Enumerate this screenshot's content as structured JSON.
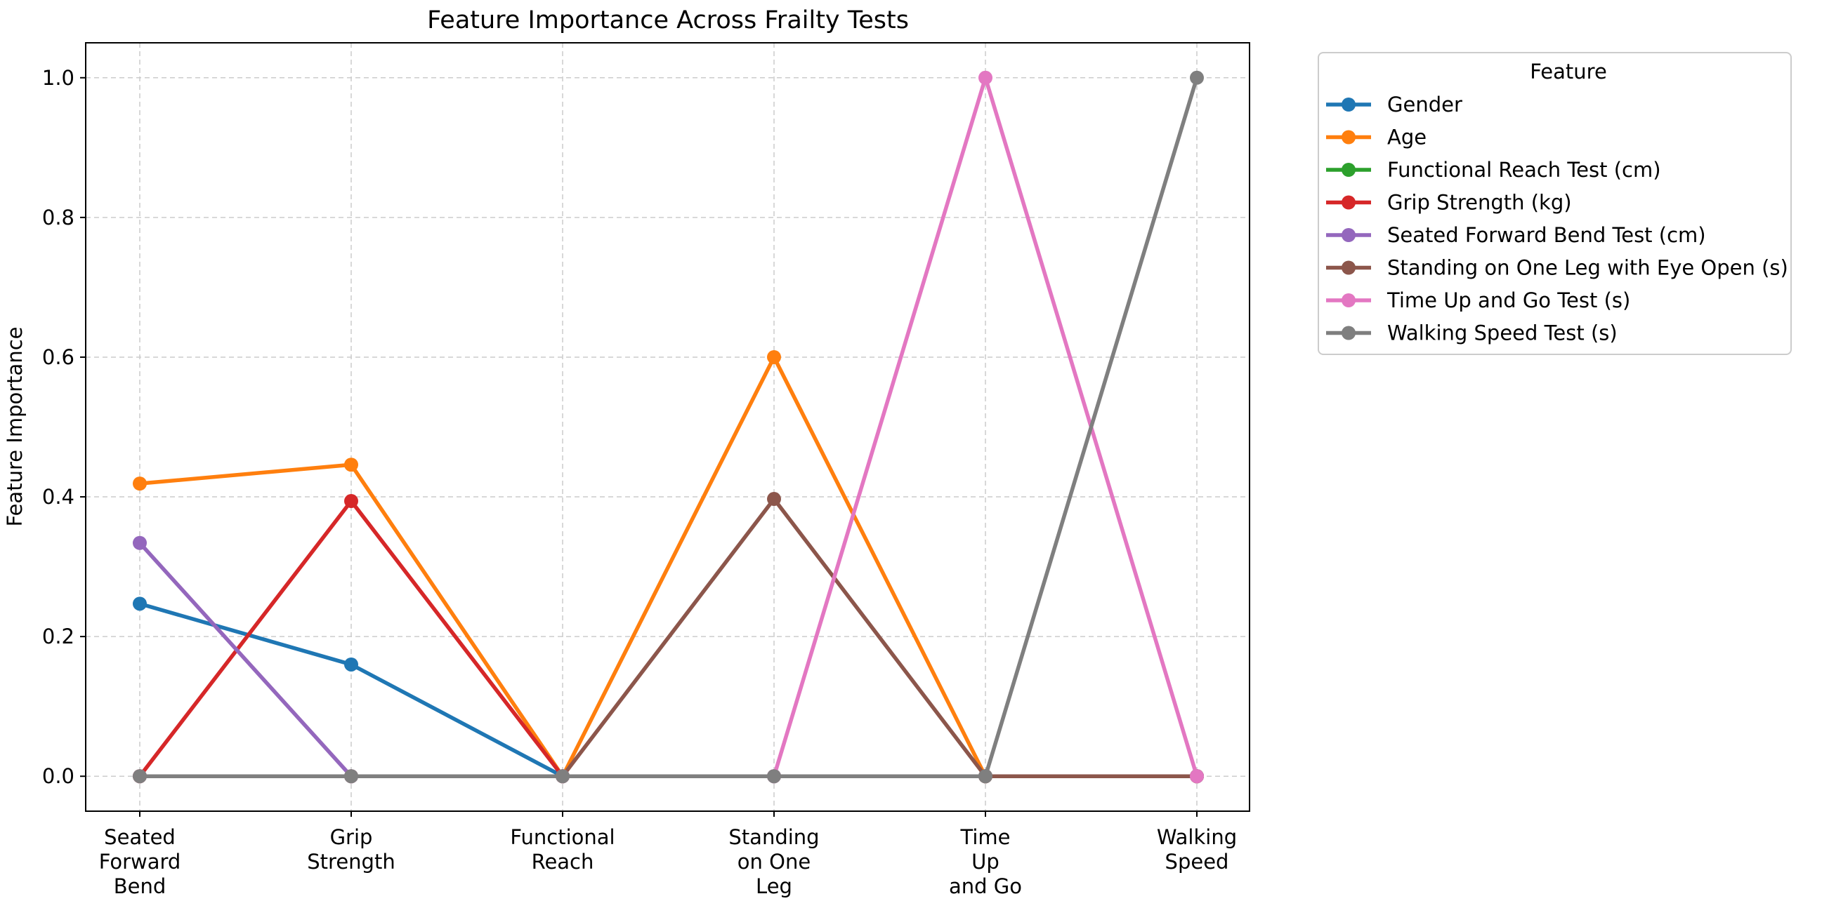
{
  "chart_data": {
    "type": "line",
    "title": "Feature Importance Across Frailty Tests",
    "xlabel": "",
    "ylabel": "Feature Importance",
    "categories": [
      [
        "Seated",
        "Forward",
        "Bend"
      ],
      [
        "Grip",
        "Strength"
      ],
      [
        "Functional",
        "Reach"
      ],
      [
        "Standing",
        "on One",
        "Leg"
      ],
      [
        "Time",
        "Up",
        "and Go"
      ],
      [
        "Walking",
        "Speed"
      ]
    ],
    "ylim": [
      -0.05,
      1.05
    ],
    "yticks": [
      0.0,
      0.2,
      0.4,
      0.6,
      0.8,
      1.0
    ],
    "ytick_labels": [
      "0.0",
      "0.2",
      "0.4",
      "0.6",
      "0.8",
      "1.0"
    ],
    "grid": true,
    "legend": {
      "title": "Feature",
      "placement": "outside-top-right"
    },
    "series": [
      {
        "name": "Gender",
        "color": "#1f77b4",
        "values": [
          0.247,
          0.16,
          0.0,
          0.0,
          0.0,
          0.0
        ]
      },
      {
        "name": "Age",
        "color": "#ff7f0e",
        "values": [
          0.419,
          0.446,
          0.0,
          0.6,
          0.0,
          0.0
        ]
      },
      {
        "name": "Functional Reach Test (cm)",
        "color": "#2ca02c",
        "values": [
          0.0,
          0.0,
          0.0,
          0.0,
          0.0,
          0.0
        ]
      },
      {
        "name": "Grip Strength (kg)",
        "color": "#d62728",
        "values": [
          0.0,
          0.394,
          0.0,
          0.0,
          0.0,
          0.0
        ]
      },
      {
        "name": "Seated Forward Bend Test (cm)",
        "color": "#9467bd",
        "values": [
          0.334,
          0.0,
          0.0,
          0.0,
          0.0,
          0.0
        ]
      },
      {
        "name": "Standing on One Leg with Eye Open (s)",
        "color": "#8c564b",
        "values": [
          0.0,
          0.0,
          0.0,
          0.397,
          0.0,
          0.0
        ]
      },
      {
        "name": "Time Up and Go Test (s)",
        "color": "#e377c2",
        "values": [
          0.0,
          0.0,
          0.0,
          0.0,
          1.0,
          0.0
        ]
      },
      {
        "name": "Walking Speed Test (s)",
        "color": "#7f7f7f",
        "values": [
          0.0,
          0.0,
          0.0,
          0.0,
          0.0,
          1.0
        ]
      }
    ]
  }
}
